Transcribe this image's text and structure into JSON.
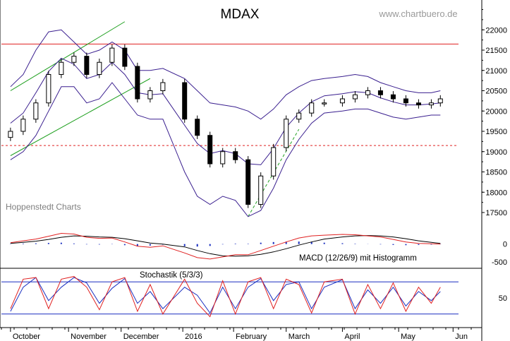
{
  "title": "MDAX",
  "watermark": "www.chartbuero.de",
  "source": "Hoppenstedt Charts",
  "macd_label": "MACD (12/26/9) mit Histogramm",
  "stoch_label": "Stochastik (5/3/3)",
  "price_axis_ticks": [
    "22000",
    "21500",
    "21000",
    "20500",
    "20000",
    "19500",
    "19000",
    "18500",
    "18000",
    "17500"
  ],
  "macd_axis_ticks": [
    "0",
    "-500"
  ],
  "stoch_axis_ticks": [
    "50"
  ],
  "month_labels": [
    "October",
    "November",
    "December",
    "2016",
    "February",
    "March",
    "April",
    "May",
    "Jun"
  ],
  "chart_data": [
    {
      "type": "candlestick",
      "title": "MDAX",
      "ylim": [
        17100,
        22700
      ],
      "x": [
        "2015-10-01",
        "2015-10-08",
        "2015-10-15",
        "2015-10-22",
        "2015-10-29",
        "2015-11-05",
        "2015-11-12",
        "2015-11-19",
        "2015-11-26",
        "2015-12-03",
        "2015-12-10",
        "2015-12-17",
        "2015-12-24",
        "2016-01-05",
        "2016-01-12",
        "2016-01-19",
        "2016-01-26",
        "2016-02-02",
        "2016-02-09",
        "2016-02-16",
        "2016-02-23",
        "2016-03-01",
        "2016-03-08",
        "2016-03-15",
        "2016-03-22",
        "2016-04-01",
        "2016-04-08",
        "2016-04-15",
        "2016-04-22",
        "2016-04-29",
        "2016-05-06",
        "2016-05-13",
        "2016-05-20",
        "2016-05-25"
      ],
      "close": [
        19500,
        19800,
        20200,
        20900,
        21200,
        21350,
        20900,
        21200,
        21550,
        21100,
        20300,
        20500,
        20700,
        19800,
        19400,
        18700,
        19000,
        18800,
        17700,
        18400,
        19100,
        19800,
        19950,
        20200,
        20200,
        20300,
        20400,
        20500,
        20400,
        20300,
        20200,
        20150,
        20200,
        20300
      ],
      "upper_band": [
        20600,
        20900,
        21500,
        21950,
        22000,
        21700,
        21400,
        21500,
        21700,
        21500,
        21000,
        21000,
        21050,
        20800,
        20500,
        20200,
        20150,
        20100,
        20000,
        19800,
        20050,
        20400,
        20600,
        20750,
        20800,
        20850,
        20900,
        20850,
        20700,
        20600,
        20500,
        20450,
        20450,
        20500
      ],
      "lower_band": [
        18800,
        19000,
        19400,
        20000,
        20600,
        20600,
        20200,
        20300,
        20700,
        20300,
        19900,
        19800,
        19800,
        18500,
        17900,
        17700,
        17900,
        17800,
        17400,
        17550,
        18100,
        18800,
        19300,
        19700,
        19950,
        20000,
        20050,
        20050,
        19950,
        19850,
        19800,
        19850,
        19900,
        19900
      ],
      "horizontal_lines": [
        {
          "value": 21650,
          "style": "solid",
          "color": "#e02020"
        },
        {
          "value": 19150,
          "style": "dashed",
          "color": "#e02020"
        }
      ],
      "trend_channel": {
        "color": "#20a020",
        "lines": [
          {
            "from": [
              "2015-10-01",
              20500
            ],
            "to": [
              "2015-12-03",
              22200
            ]
          },
          {
            "from": [
              "2015-10-01",
              18900
            ],
            "to": [
              "2015-12-17",
              20800
            ]
          }
        ]
      },
      "support_line": {
        "color": "#20a020",
        "style": "dashed",
        "from": [
          "2016-02-09",
          17400
        ],
        "to": [
          "2016-03-08",
          19550
        ]
      }
    },
    {
      "type": "line",
      "title": "MACD (12/26/9) mit Histogramm",
      "ylim": [
        -600,
        350
      ],
      "series": [
        {
          "name": "MACD",
          "color": "#e02020",
          "values": [
            40,
            90,
            140,
            220,
            300,
            280,
            190,
            160,
            170,
            60,
            -60,
            -90,
            -50,
            -250,
            -380,
            -420,
            -360,
            -300,
            -300,
            -180,
            -60,
            60,
            170,
            230,
            250,
            270,
            260,
            230,
            200,
            130,
            60,
            20,
            10,
            0
          ]
        },
        {
          "name": "Signal",
          "color": "#000000",
          "values": [
            20,
            50,
            80,
            130,
            190,
            230,
            220,
            200,
            190,
            150,
            90,
            30,
            0,
            -80,
            -180,
            -270,
            -330,
            -340,
            -330,
            -290,
            -220,
            -130,
            -30,
            60,
            140,
            200,
            230,
            240,
            230,
            200,
            150,
            90,
            50,
            20
          ]
        }
      ],
      "histogram_color": "#1a2fc0"
    },
    {
      "type": "line",
      "title": "Stochastik (5/3/3)",
      "ylim": [
        0,
        100
      ],
      "reference_lines": [
        80,
        20
      ],
      "series": [
        {
          "name": "%K",
          "color": "#e02020",
          "values": [
            30,
            85,
            88,
            30,
            85,
            90,
            70,
            28,
            80,
            88,
            25,
            75,
            20,
            85,
            40,
            15,
            82,
            20,
            80,
            88,
            30,
            85,
            75,
            22,
            80,
            85,
            20,
            75,
            30,
            78,
            25,
            70,
            40,
            70
          ]
        },
        {
          "name": "%D",
          "color": "#1a2fc0",
          "values": [
            25,
            70,
            88,
            45,
            70,
            88,
            78,
            40,
            68,
            86,
            40,
            62,
            30,
            70,
            55,
            22,
            70,
            30,
            70,
            86,
            45,
            75,
            80,
            30,
            70,
            84,
            30,
            65,
            40,
            70,
            35,
            62,
            45,
            62
          ]
        }
      ]
    }
  ]
}
